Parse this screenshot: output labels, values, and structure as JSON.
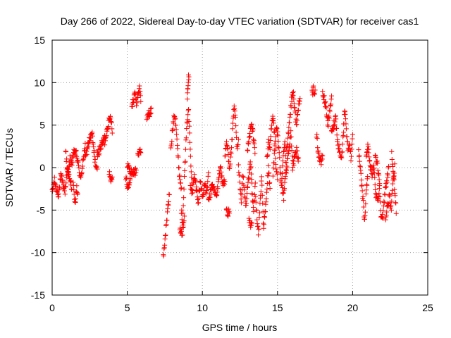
{
  "chart_data": {
    "type": "scatter",
    "title": "Day 266 of 2022, Sidereal Day-to-day VTEC variation (SDTVAR) for receiver cas1",
    "xlabel": "GPS time / hours",
    "ylabel": "SDTVAR / TECUs",
    "xlim": [
      0,
      25
    ],
    "ylim": [
      -15,
      15
    ],
    "xticks": [
      0,
      5,
      10,
      15,
      20,
      25
    ],
    "yticks": [
      -15,
      -10,
      -5,
      0,
      5,
      10,
      15
    ],
    "xtick_labels": [
      "0",
      "5",
      "10",
      "15",
      "20",
      "25"
    ],
    "ytick_labels": [
      "-15",
      "-10",
      "-5",
      "0",
      "5",
      "10",
      "15"
    ],
    "grid": true,
    "marker": "+",
    "color": "#ff0000",
    "segments": [
      {
        "x0": 0.0,
        "x1": 1.3,
        "y": [
          -3.0,
          -1.5,
          -2.5,
          -3.2,
          -1.0,
          -2.0,
          -2.8,
          0.0,
          -1.5,
          -2.2
        ]
      },
      {
        "x0": 0.9,
        "x1": 2.2,
        "y": [
          2.0,
          -1.0,
          1.0,
          0.5,
          2.0,
          1.5,
          0.0,
          -1.5,
          1.0,
          2.5
        ]
      },
      {
        "x0": 1.4,
        "x1": 1.7,
        "y": [
          -2.0,
          -3.5,
          -4.0,
          -2.5,
          -3.0
        ]
      },
      {
        "x0": 2.2,
        "x1": 3.0,
        "y": [
          1.0,
          2.0,
          3.0,
          3.5,
          4.0,
          2.0,
          0.5,
          -0.5
        ]
      },
      {
        "x0": 3.0,
        "x1": 3.5,
        "y": [
          1.5,
          2.0,
          2.5,
          3.0,
          3.5
        ]
      },
      {
        "x0": 3.5,
        "x1": 4.0,
        "y": [
          3.0,
          4.0,
          5.0,
          5.5,
          6.0,
          4.5
        ]
      },
      {
        "x0": 3.8,
        "x1": 4.0,
        "y": [
          -0.5,
          -1.5,
          -1.0
        ]
      },
      {
        "x0": 4.9,
        "x1": 5.2,
        "y": [
          -1.0,
          -2.0,
          -2.3,
          -1.5
        ]
      },
      {
        "x0": 5.0,
        "x1": 5.6,
        "y": [
          0.5,
          -0.5,
          -0.6,
          -0.5
        ]
      },
      {
        "x0": 5.3,
        "x1": 5.9,
        "y": [
          7.0,
          8.0,
          9.0,
          7.5,
          8.5,
          9.5,
          8.0
        ]
      },
      {
        "x0": 5.7,
        "x1": 5.9,
        "y": [
          1.5,
          2.0,
          1.5
        ]
      },
      {
        "x0": 6.3,
        "x1": 6.6,
        "y": [
          5.8,
          6.5,
          6.2,
          6.8
        ]
      },
      {
        "x0": 7.4,
        "x1": 7.8,
        "y": [
          -10.5,
          -9.0,
          -7.5,
          -6.0,
          -4.5,
          -3.0
        ]
      },
      {
        "x0": 7.9,
        "x1": 8.6,
        "y": [
          2.0,
          4.5,
          6.5,
          5.0,
          1.5,
          -1.0,
          -2.5
        ]
      },
      {
        "x0": 8.6,
        "x1": 9.3,
        "y": [
          -5.0,
          -6.5,
          -3.0,
          0.0,
          3.0,
          5.5,
          7.0,
          4.0,
          1.0,
          -1.5
        ]
      },
      {
        "x0": 9.0,
        "x1": 9.1,
        "y": [
          8.5,
          10.0,
          11.0
        ]
      },
      {
        "x0": 8.5,
        "x1": 8.8,
        "y": [
          -7.0,
          -8.0,
          -6.0
        ]
      },
      {
        "x0": 9.2,
        "x1": 10.4,
        "y": [
          -2.0,
          -3.0,
          -1.0,
          -2.5,
          -4.0,
          -1.5,
          -3.5,
          -2.0,
          -3.0,
          -1.0
        ]
      },
      {
        "x0": 10.4,
        "x1": 11.5,
        "y": [
          -4.0,
          -3.0,
          -2.0,
          -2.8,
          -3.5,
          -1.0,
          0.0,
          -2.0,
          -1.5
        ]
      },
      {
        "x0": 11.5,
        "x1": 12.4,
        "y": [
          1.0,
          3.0,
          2.0,
          0.0,
          1.5,
          4.0,
          7.0,
          6.0,
          2.0,
          3.0
        ]
      },
      {
        "x0": 11.6,
        "x1": 11.8,
        "y": [
          -4.5,
          -5.5,
          -5.0
        ]
      },
      {
        "x0": 12.4,
        "x1": 13.3,
        "y": [
          0.0,
          -2.0,
          -4.0,
          -1.0,
          -3.0,
          -5.0,
          -2.5,
          -1.0,
          0.5,
          -2.0
        ]
      },
      {
        "x0": 13.0,
        "x1": 13.5,
        "y": [
          2.0,
          3.5,
          5.0,
          4.0,
          2.0
        ]
      },
      {
        "x0": 13.1,
        "x1": 13.3,
        "y": [
          -6.0,
          -7.0,
          -6.5
        ]
      },
      {
        "x0": 13.3,
        "x1": 14.5,
        "y": [
          -3.0,
          -5.0,
          -2.0,
          -6.0,
          -8.0,
          -4.0,
          -1.0,
          -7.0,
          -5.5,
          -3.0,
          0.0,
          -2.5
        ]
      },
      {
        "x0": 14.3,
        "x1": 15.0,
        "y": [
          1.0,
          3.0,
          2.0,
          5.0,
          6.0,
          4.0,
          0.0,
          -1.0
        ]
      },
      {
        "x0": 14.7,
        "x1": 15.6,
        "y": [
          -1.0,
          2.0,
          5.0,
          3.5,
          0.5,
          -2.0,
          1.5,
          3.0,
          -0.5
        ]
      },
      {
        "x0": 15.3,
        "x1": 16.0,
        "y": [
          -2.5,
          -3.5,
          -1.0,
          0.5,
          2.0,
          4.0,
          1.0
        ]
      },
      {
        "x0": 15.6,
        "x1": 16.5,
        "y": [
          2.0,
          4.0,
          6.0,
          8.0,
          9.0,
          6.5,
          5.0,
          7.0,
          8.5
        ]
      },
      {
        "x0": 16.0,
        "x1": 16.4,
        "y": [
          0.0,
          1.0,
          2.0,
          1.0
        ]
      },
      {
        "x0": 17.3,
        "x1": 17.5,
        "y": [
          8.8,
          9.2,
          8.9
        ]
      },
      {
        "x0": 17.6,
        "x1": 18.0,
        "y": [
          4.0,
          2.0,
          1.0,
          0.5,
          1.5
        ]
      },
      {
        "x0": 18.0,
        "x1": 18.6,
        "y": [
          8.8,
          8.0,
          7.0,
          5.0,
          6.5,
          8.5
        ]
      },
      {
        "x0": 18.6,
        "x1": 19.4,
        "y": [
          4.0,
          5.0,
          6.0,
          3.0,
          2.0,
          1.0,
          4.5
        ]
      },
      {
        "x0": 19.4,
        "x1": 20.0,
        "y": [
          5.0,
          7.0,
          4.0,
          2.0,
          3.0,
          1.0,
          3.5
        ]
      },
      {
        "x0": 20.4,
        "x1": 21.0,
        "y": [
          2.0,
          0.0,
          -2.0,
          -4.0,
          -6.5,
          -3.0,
          -1.0
        ]
      },
      {
        "x0": 20.9,
        "x1": 21.8,
        "y": [
          1.5,
          2.5,
          0.5,
          -1.0,
          0.0,
          -3.0,
          -4.0,
          -2.0
        ]
      },
      {
        "x0": 21.5,
        "x1": 22.4,
        "y": [
          1.5,
          0.5,
          -1.0,
          -5.5,
          -6.0,
          -3.0,
          -1.5,
          0.0
        ]
      },
      {
        "x0": 22.2,
        "x1": 22.8,
        "y": [
          -6.0,
          -4.5,
          -3.5,
          -5.0,
          -2.0,
          0.0
        ]
      },
      {
        "x0": 22.6,
        "x1": 22.9,
        "y": [
          1.5,
          0.0,
          -1.5,
          -3.0,
          -5.0
        ]
      }
    ]
  }
}
